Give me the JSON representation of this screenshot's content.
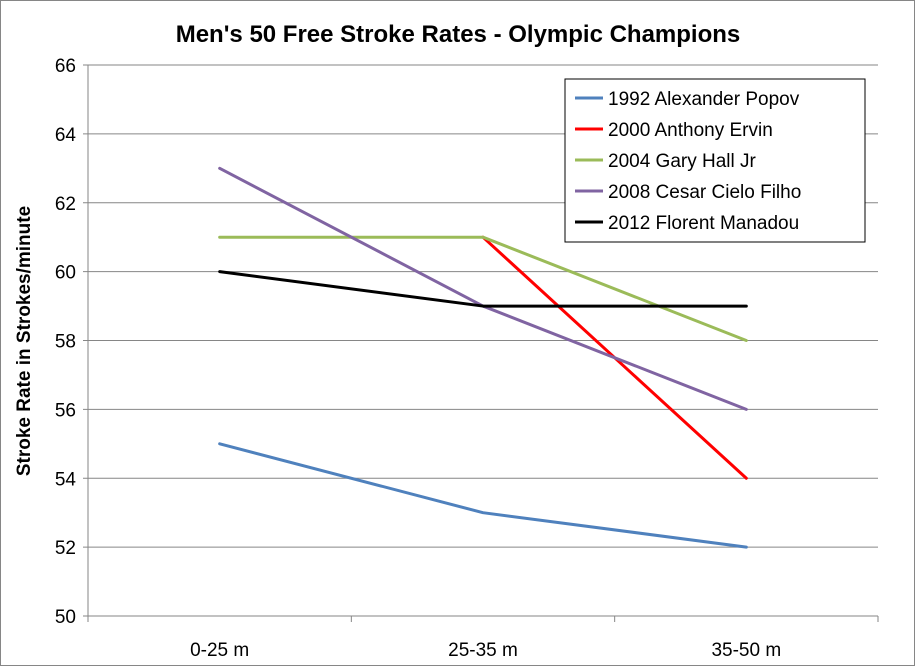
{
  "chart_data": {
    "type": "line",
    "title": "Men's 50 Free Stroke Rates - Olympic Champions",
    "xlabel": "",
    "ylabel": "Stroke Rate in Strokes/minute",
    "categories": [
      "0-25 m",
      "25-35 m",
      "35-50 m"
    ],
    "ylim": [
      50,
      66
    ],
    "yticks": [
      50,
      52,
      54,
      56,
      58,
      60,
      62,
      64,
      66
    ],
    "grid": true,
    "legend_position": "top-right",
    "series": [
      {
        "name": "1992 Alexander Popov",
        "color": "#4f81bd",
        "values": [
          55,
          53,
          52
        ]
      },
      {
        "name": "2000 Anthony Ervin",
        "color": "#ff0000",
        "values": [
          null,
          61,
          54
        ]
      },
      {
        "name": "2004 Gary Hall Jr",
        "color": "#9bbb59",
        "values": [
          61,
          61,
          58
        ]
      },
      {
        "name": "2008 Cesar Cielo Filho",
        "color": "#8064a2",
        "values": [
          63,
          59,
          56
        ]
      },
      {
        "name": "2012 Florent Manadou",
        "color": "#000000",
        "values": [
          60,
          59,
          59
        ]
      }
    ]
  }
}
